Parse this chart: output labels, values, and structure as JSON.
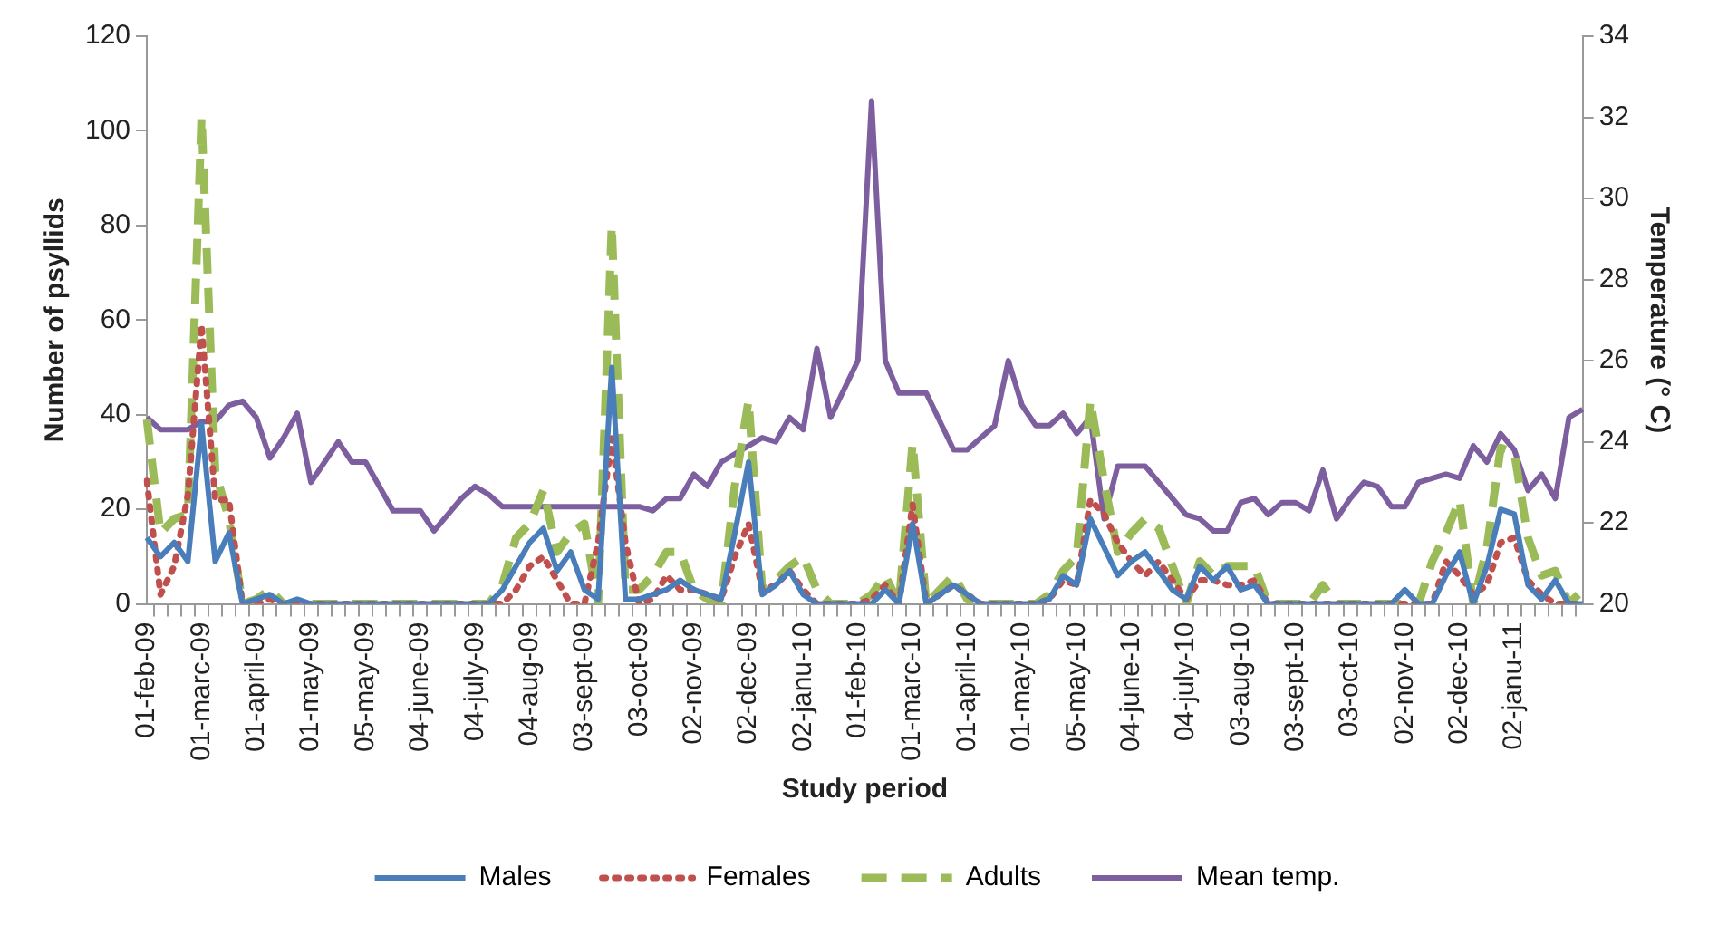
{
  "chart_data": {
    "type": "line",
    "xlabel": "Study period",
    "ylabel": "Number of psyllids",
    "y2label": "Temperature (° C)",
    "categories": [
      "01-feb-09",
      null,
      null,
      null,
      "01-marc-09",
      null,
      null,
      null,
      "01-april-09",
      null,
      null,
      null,
      "01-may-09",
      null,
      null,
      null,
      "05-may-09",
      null,
      null,
      null,
      "04-june-09",
      null,
      null,
      null,
      "04-july-09",
      null,
      null,
      null,
      "04-aug-09",
      null,
      null,
      null,
      "03-sept-09",
      null,
      null,
      null,
      "03-oct-09",
      null,
      null,
      null,
      "02-nov-09",
      null,
      null,
      null,
      "02-dec-09",
      null,
      null,
      null,
      "02-janu-10",
      null,
      null,
      null,
      "01-feb-10",
      null,
      null,
      null,
      "01-marc-10",
      null,
      null,
      null,
      "01-april-10",
      null,
      null,
      null,
      "01-may-10",
      null,
      null,
      null,
      "05-may-10",
      null,
      null,
      null,
      "04-june-10",
      null,
      null,
      null,
      "04-july-10",
      null,
      null,
      null,
      "03-aug-10",
      null,
      null,
      null,
      "03-sept-10",
      null,
      null,
      null,
      "03-oct-10",
      null,
      null,
      null,
      "02-nov-10",
      null,
      null,
      null,
      "02-dec-10",
      null,
      null,
      null,
      "02-janu-11",
      null,
      null,
      null,
      null,
      null
    ],
    "series": [
      {
        "name": "Males",
        "color": "#4a7ebb",
        "line_style": "solid",
        "values": [
          14,
          10,
          13,
          9,
          38,
          9,
          15,
          0,
          1,
          2,
          0,
          1,
          0,
          0,
          0,
          0,
          0,
          0,
          0,
          0,
          0,
          0,
          0,
          0,
          0,
          0,
          3,
          8,
          13,
          16,
          7,
          11,
          3,
          1,
          50,
          1,
          1,
          2,
          3,
          5,
          3,
          2,
          1,
          15,
          30,
          2,
          4,
          7,
          2,
          0,
          0,
          0,
          0,
          0,
          3,
          0,
          17,
          0,
          2,
          4,
          2,
          0,
          0,
          0,
          0,
          0,
          1,
          6,
          4,
          18,
          12,
          6,
          9,
          11,
          7,
          3,
          1,
          8,
          5,
          8,
          3,
          4,
          0,
          0,
          0,
          0,
          0,
          0,
          0,
          0,
          0,
          0,
          3,
          0,
          0,
          6,
          11,
          0,
          8,
          20,
          19,
          4,
          1,
          5,
          0,
          0
        ]
      },
      {
        "name": "Females",
        "color": "#c0504d",
        "line_style": "dotted",
        "values": [
          26,
          2,
          8,
          23,
          59,
          22,
          22,
          0,
          0,
          1,
          0,
          0,
          0,
          0,
          0,
          0,
          0,
          0,
          0,
          0,
          0,
          0,
          0,
          0,
          0,
          0,
          0,
          3,
          8,
          10,
          5,
          0,
          0,
          13,
          35,
          13,
          0,
          1,
          6,
          3,
          3,
          2,
          1,
          10,
          17,
          3,
          4,
          7,
          3,
          0,
          0,
          0,
          0,
          1,
          4,
          0,
          21,
          0,
          2,
          4,
          2,
          0,
          0,
          0,
          0,
          0,
          1,
          5,
          4,
          22,
          19,
          13,
          9,
          6,
          9,
          5,
          1,
          5,
          5,
          4,
          4,
          5,
          0,
          0,
          0,
          0,
          0,
          0,
          0,
          0,
          0,
          0,
          0,
          0,
          0,
          9,
          6,
          2,
          4,
          13,
          14,
          5,
          2,
          0,
          0,
          0
        ]
      },
      {
        "name": "Adults",
        "color": "#9bbb59",
        "line_style": "dashed",
        "values": [
          39,
          15,
          18,
          19,
          103,
          28,
          18,
          0,
          1,
          3,
          0,
          0,
          0,
          0,
          0,
          0,
          0,
          0,
          0,
          0,
          0,
          0,
          0,
          0,
          0,
          0,
          4,
          14,
          17,
          24,
          11,
          15,
          17,
          0,
          80,
          3,
          3,
          6,
          11,
          11,
          3,
          1,
          0,
          25,
          43,
          3,
          5,
          8,
          10,
          3,
          0,
          0,
          0,
          2,
          6,
          0,
          34,
          0,
          3,
          6,
          1,
          0,
          0,
          0,
          0,
          0,
          2,
          7,
          10,
          43,
          26,
          11,
          15,
          18,
          16,
          8,
          0,
          9,
          6,
          8,
          8,
          8,
          0,
          0,
          0,
          0,
          4,
          0,
          0,
          0,
          0,
          0,
          0,
          0,
          9,
          15,
          22,
          0,
          12,
          33,
          32,
          14,
          6,
          7,
          0,
          3
        ]
      },
      {
        "name": "Mean temp.",
        "color": "#7d5fa0",
        "line_style": "solid",
        "axis": "y2",
        "values": [
          24.6,
          24.3,
          24.3,
          24.3,
          24.5,
          24.5,
          24.9,
          25.0,
          24.6,
          23.6,
          24.1,
          24.7,
          23.0,
          23.5,
          24.0,
          23.5,
          23.5,
          22.9,
          22.3,
          22.3,
          22.3,
          21.8,
          22.2,
          22.6,
          22.9,
          22.7,
          22.4,
          22.4,
          22.4,
          22.4,
          22.4,
          22.4,
          22.4,
          22.4,
          22.4,
          22.4,
          22.4,
          22.3,
          22.6,
          22.6,
          23.2,
          22.9,
          23.5,
          23.7,
          23.9,
          24.1,
          24.0,
          24.6,
          24.3,
          26.3,
          24.6,
          25.3,
          26.0,
          32.4,
          26.0,
          25.2,
          25.2,
          25.2,
          24.5,
          23.8,
          23.8,
          24.1,
          24.4,
          26.0,
          24.9,
          24.4,
          24.4,
          24.7,
          24.2,
          24.6,
          22.1,
          23.4,
          23.4,
          23.4,
          23.0,
          22.6,
          22.2,
          22.1,
          21.8,
          21.8,
          22.5,
          22.6,
          22.2,
          22.5,
          22.5,
          22.3,
          23.3,
          22.1,
          22.6,
          23.0,
          22.9,
          22.4,
          22.4,
          23.0,
          23.1,
          23.2,
          23.1,
          23.9,
          23.5,
          24.2,
          23.8,
          22.8,
          23.2,
          22.6,
          24.6,
          24.8
        ]
      }
    ],
    "ylim": [
      0,
      120
    ],
    "yticks": [
      0,
      20,
      40,
      60,
      80,
      100,
      120
    ],
    "y2lim": [
      20,
      34
    ],
    "y2ticks": [
      20,
      22,
      24,
      26,
      28,
      30,
      32,
      34
    ],
    "grid": false,
    "legend": "bottom",
    "marker": "none"
  }
}
